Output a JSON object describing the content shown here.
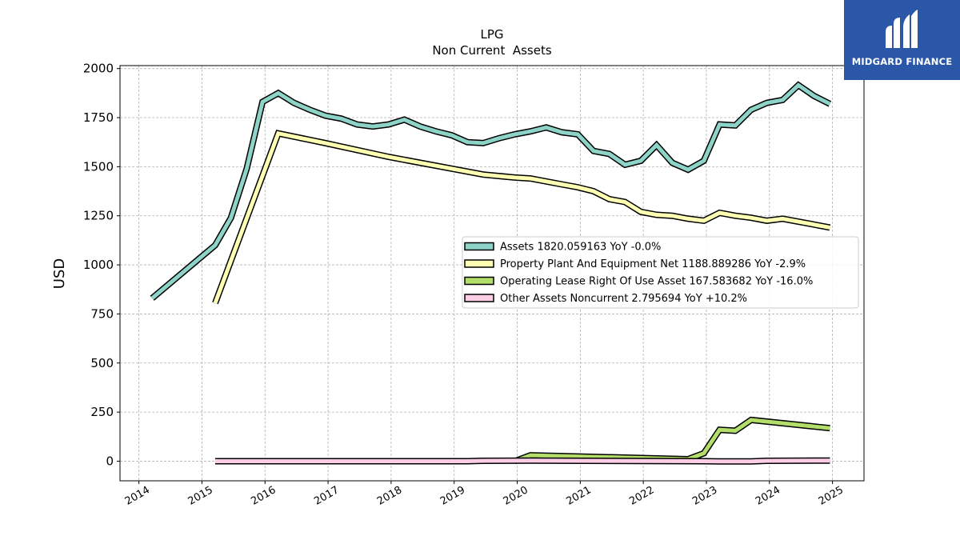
{
  "brand": {
    "name": "MIDGARD FINANCE",
    "color": "#2b57a8"
  },
  "chart_data": {
    "type": "line",
    "title": "LPG",
    "subtitle": "Non Current  Assets",
    "ylabel": "USD",
    "xlabel": "",
    "xlim": [
      2013.7,
      2025.5
    ],
    "ylim": [
      -100,
      2015
    ],
    "xticks": [
      2014,
      2015,
      2016,
      2017,
      2018,
      2019,
      2020,
      2021,
      2022,
      2023,
      2024,
      2025
    ],
    "xtick_labels": [
      "2014",
      "2015",
      "2016",
      "2017",
      "2018",
      "2019",
      "2020",
      "2021",
      "2022",
      "2023",
      "2024",
      "2025"
    ],
    "yticks": [
      0,
      250,
      500,
      750,
      1000,
      1250,
      1500,
      1750,
      2000
    ],
    "ytick_labels": [
      "0",
      "250",
      "500",
      "750",
      "1000",
      "1250",
      "1500",
      "1750",
      "2000"
    ],
    "grid": true,
    "legend_position": "center-right",
    "series": [
      {
        "name": "Assets  1820.059163 YoY -0.0%",
        "color": "#8dd3c7",
        "points": [
          [
            2014.21,
            830
          ],
          [
            2015.21,
            1100
          ],
          [
            2015.46,
            1240
          ],
          [
            2015.71,
            1490
          ],
          [
            2015.96,
            1830
          ],
          [
            2016.21,
            1875
          ],
          [
            2016.46,
            1825
          ],
          [
            2016.71,
            1790
          ],
          [
            2016.96,
            1760
          ],
          [
            2017.21,
            1745
          ],
          [
            2017.46,
            1715
          ],
          [
            2017.71,
            1705
          ],
          [
            2017.96,
            1715
          ],
          [
            2018.21,
            1740
          ],
          [
            2018.46,
            1705
          ],
          [
            2018.71,
            1680
          ],
          [
            2018.96,
            1660
          ],
          [
            2019.21,
            1625
          ],
          [
            2019.46,
            1620
          ],
          [
            2019.71,
            1645
          ],
          [
            2019.96,
            1665
          ],
          [
            2020.21,
            1680
          ],
          [
            2020.46,
            1700
          ],
          [
            2020.71,
            1675
          ],
          [
            2020.96,
            1665
          ],
          [
            2021.21,
            1580
          ],
          [
            2021.46,
            1565
          ],
          [
            2021.71,
            1510
          ],
          [
            2021.96,
            1530
          ],
          [
            2022.21,
            1610
          ],
          [
            2022.46,
            1520
          ],
          [
            2022.71,
            1485
          ],
          [
            2022.96,
            1530
          ],
          [
            2023.21,
            1715
          ],
          [
            2023.46,
            1710
          ],
          [
            2023.71,
            1790
          ],
          [
            2023.96,
            1825
          ],
          [
            2024.21,
            1840
          ],
          [
            2024.46,
            1915
          ],
          [
            2024.71,
            1860
          ],
          [
            2024.96,
            1820
          ]
        ]
      },
      {
        "name": "Property Plant And Equipment Net  1188.889286 YoY -2.9%",
        "color": "#ffffb3",
        "points": [
          [
            2015.21,
            805
          ],
          [
            2016.21,
            1670
          ],
          [
            2016.96,
            1620
          ],
          [
            2017.96,
            1550
          ],
          [
            2018.96,
            1490
          ],
          [
            2019.46,
            1460
          ],
          [
            2019.96,
            1445
          ],
          [
            2020.21,
            1440
          ],
          [
            2020.71,
            1410
          ],
          [
            2020.96,
            1395
          ],
          [
            2021.21,
            1375
          ],
          [
            2021.46,
            1335
          ],
          [
            2021.71,
            1320
          ],
          [
            2021.96,
            1270
          ],
          [
            2022.21,
            1255
          ],
          [
            2022.46,
            1250
          ],
          [
            2022.71,
            1235
          ],
          [
            2022.96,
            1225
          ],
          [
            2023.21,
            1265
          ],
          [
            2023.46,
            1250
          ],
          [
            2023.71,
            1240
          ],
          [
            2023.96,
            1225
          ],
          [
            2024.21,
            1235
          ],
          [
            2024.96,
            1190
          ]
        ]
      },
      {
        "name": "Operating Lease Right Of Use Asset  167.583682 YoY -16.0%",
        "color": "#b3de69",
        "points": [
          [
            2019.96,
            0
          ],
          [
            2020.21,
            30
          ],
          [
            2022.71,
            10
          ],
          [
            2022.96,
            40
          ],
          [
            2023.21,
            160
          ],
          [
            2023.46,
            155
          ],
          [
            2023.71,
            210
          ],
          [
            2024.96,
            168
          ]
        ]
      },
      {
        "name": "Other Assets Noncurrent  2.795694 YoY +10.2%",
        "color": "#fccde5",
        "points": [
          [
            2015.21,
            0
          ],
          [
            2019.21,
            0
          ],
          [
            2019.46,
            2
          ],
          [
            2020.21,
            3
          ],
          [
            2022.96,
            0
          ],
          [
            2023.21,
            -1
          ],
          [
            2023.71,
            -1
          ],
          [
            2023.96,
            2
          ],
          [
            2024.96,
            3
          ]
        ]
      }
    ]
  }
}
